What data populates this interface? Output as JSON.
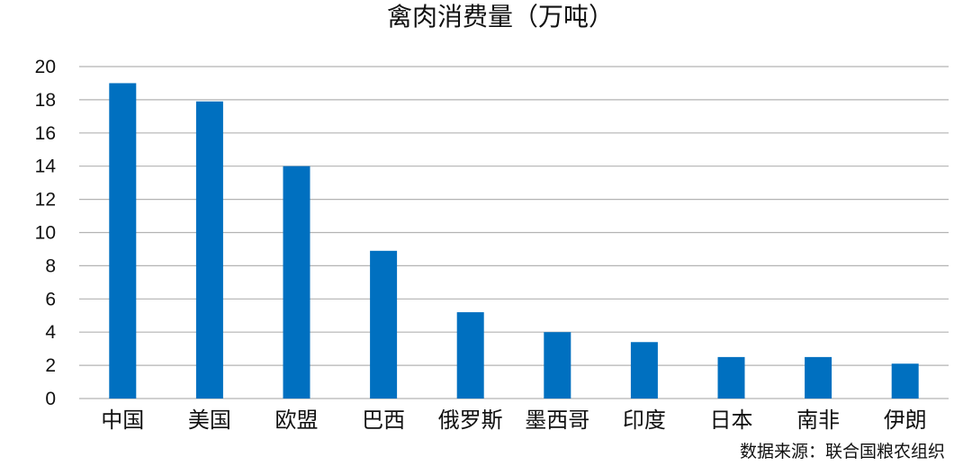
{
  "chart_data": {
    "type": "bar",
    "title": "禽肉消费量（万吨）",
    "categories": [
      "中国",
      "美国",
      "欧盟",
      "巴西",
      "俄罗斯",
      "墨西哥",
      "印度",
      "日本",
      "南非",
      "伊朗"
    ],
    "values": [
      19.0,
      17.9,
      14.0,
      8.9,
      5.2,
      4.0,
      3.4,
      2.5,
      2.5,
      2.1
    ],
    "ylim": [
      0,
      20
    ],
    "yticks": [
      0,
      2,
      4,
      6,
      8,
      10,
      12,
      14,
      16,
      18,
      20
    ],
    "grid": true,
    "bar_color": "#0070c0",
    "source": "数据来源：联合国粮农组织"
  }
}
